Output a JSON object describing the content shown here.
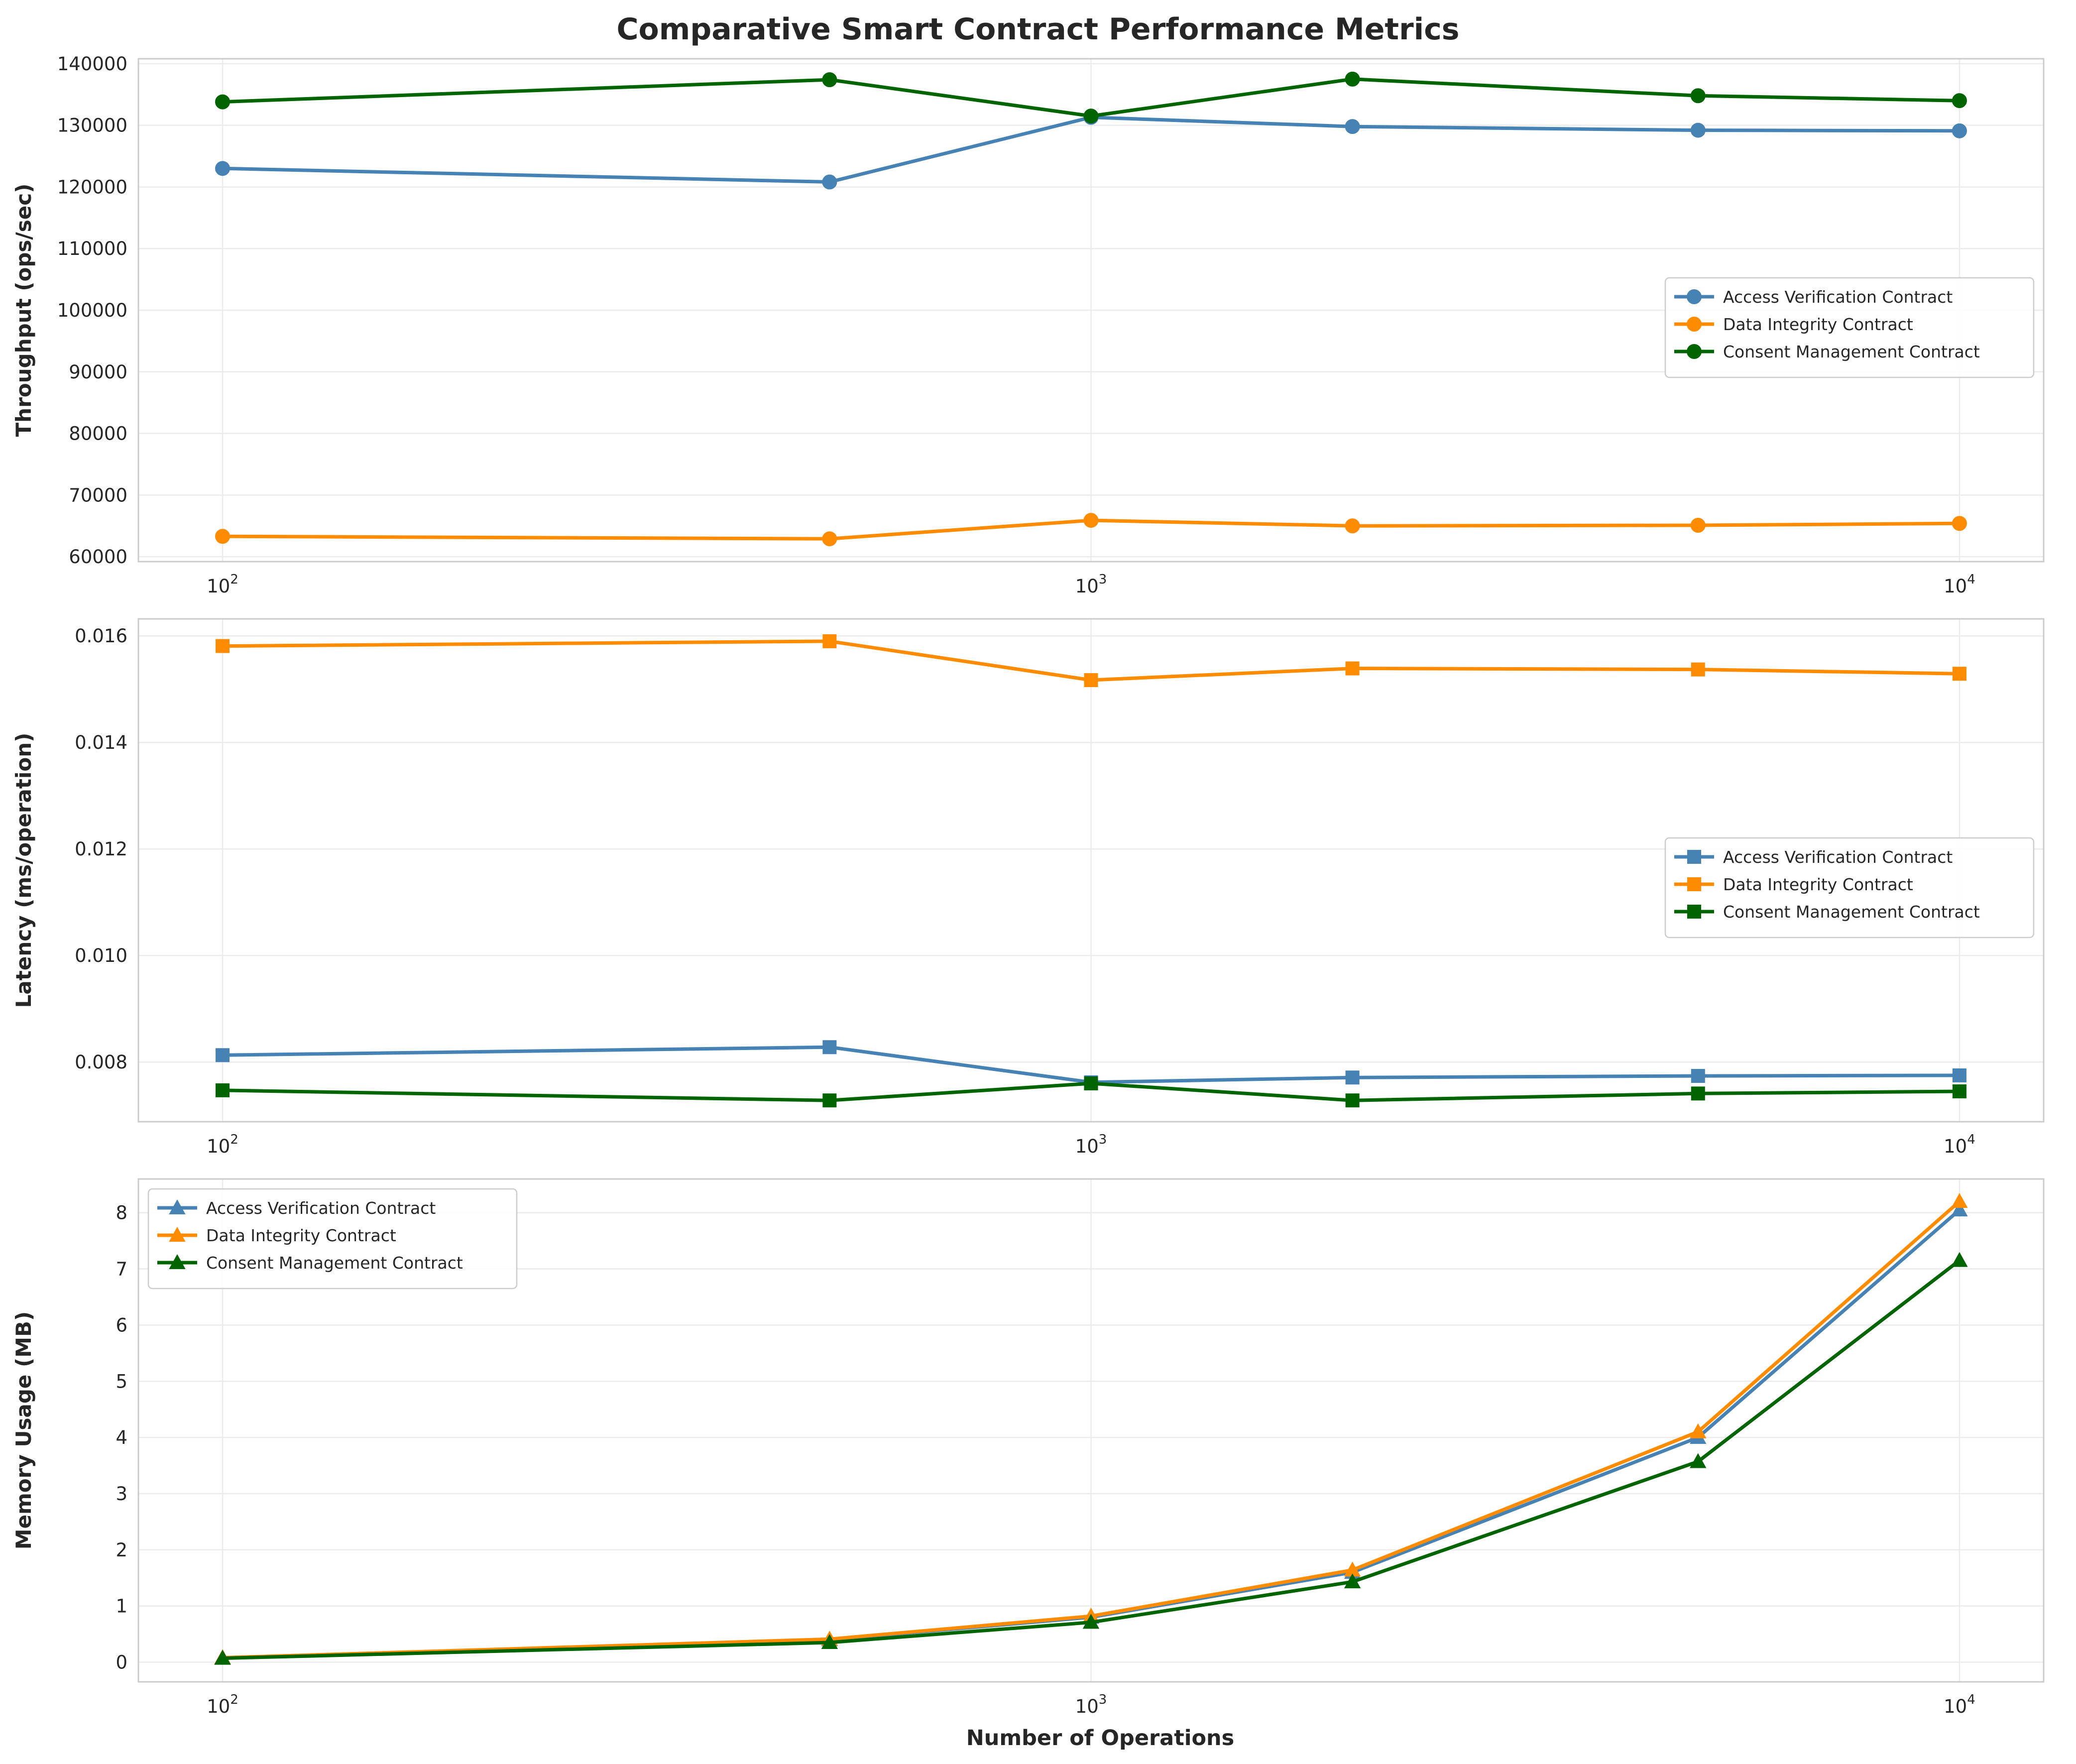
{
  "figure": {
    "title": "Comparative Smart Contract Performance Metrics",
    "xlabel": "Number of Operations"
  },
  "chart_data": [
    {
      "type": "line",
      "ylabel": "Throughput (ops/sec)",
      "xscale": "log",
      "xlim": [
        80,
        12500
      ],
      "ylim": [
        59200,
        140800
      ],
      "xticks": [
        100,
        1000,
        10000
      ],
      "xtick_labels": [
        [
          "10",
          "2"
        ],
        [
          "10",
          "3"
        ],
        [
          "10",
          "4"
        ]
      ],
      "yticks": [
        60000,
        70000,
        80000,
        90000,
        100000,
        110000,
        120000,
        130000,
        140000
      ],
      "ytick_labels": [
        "60000",
        "70000",
        "80000",
        "90000",
        "100000",
        "110000",
        "120000",
        "130000",
        "140000"
      ],
      "grid": true,
      "marker": "circle",
      "legend_position": "center-right",
      "x": [
        100,
        500,
        1000,
        2000,
        5000,
        10000
      ],
      "series": [
        {
          "name": "Access Verification Contract",
          "color": "#4682B4",
          "values": [
            123000,
            120800,
            131300,
            129800,
            129200,
            129100
          ]
        },
        {
          "name": "Data Integrity Contract",
          "color": "#FF8C00",
          "values": [
            63300,
            62900,
            65900,
            65000,
            65100,
            65400
          ]
        },
        {
          "name": "Consent Management Contract",
          "color": "#006400",
          "values": [
            133800,
            137400,
            131500,
            137500,
            134800,
            134000
          ]
        }
      ]
    },
    {
      "type": "line",
      "ylabel": "Latency (ms/operation)",
      "xscale": "log",
      "xlim": [
        80,
        12500
      ],
      "ylim": [
        0.00688,
        0.01632
      ],
      "xticks": [
        100,
        1000,
        10000
      ],
      "xtick_labels": [
        [
          "10",
          "2"
        ],
        [
          "10",
          "3"
        ],
        [
          "10",
          "4"
        ]
      ],
      "yticks": [
        0.008,
        0.01,
        0.012,
        0.014,
        0.016
      ],
      "ytick_labels": [
        "0.008",
        "0.010",
        "0.012",
        "0.014",
        "0.016"
      ],
      "grid": true,
      "marker": "square",
      "legend_position": "center-right",
      "x": [
        100,
        500,
        1000,
        2000,
        5000,
        10000
      ],
      "series": [
        {
          "name": "Access Verification Contract",
          "color": "#4682B4",
          "values": [
            0.00813,
            0.00828,
            0.00762,
            0.00771,
            0.00774,
            0.00775
          ]
        },
        {
          "name": "Data Integrity Contract",
          "color": "#FF8C00",
          "values": [
            0.01581,
            0.0159,
            0.01517,
            0.01539,
            0.01537,
            0.01529
          ]
        },
        {
          "name": "Consent Management Contract",
          "color": "#006400",
          "values": [
            0.00747,
            0.00728,
            0.0076,
            0.00728,
            0.00741,
            0.00745
          ]
        }
      ]
    },
    {
      "type": "line",
      "ylabel": "Memory Usage (MB)",
      "xscale": "log",
      "xlim": [
        80,
        12500
      ],
      "ylim": [
        -0.35,
        8.6
      ],
      "xticks": [
        100,
        1000,
        10000
      ],
      "xtick_labels": [
        [
          "10",
          "2"
        ],
        [
          "10",
          "3"
        ],
        [
          "10",
          "4"
        ]
      ],
      "yticks": [
        0,
        1,
        2,
        3,
        4,
        5,
        6,
        7,
        8
      ],
      "ytick_labels": [
        "0",
        "1",
        "2",
        "3",
        "4",
        "5",
        "6",
        "7",
        "8"
      ],
      "grid": true,
      "marker": "triangle",
      "legend_position": "upper-left",
      "x": [
        100,
        500,
        1000,
        2000,
        5000,
        10000
      ],
      "series": [
        {
          "name": "Access Verification Contract",
          "color": "#4682B4",
          "values": [
            0.08,
            0.4,
            0.8,
            1.6,
            4.0,
            8.05
          ]
        },
        {
          "name": "Data Integrity Contract",
          "color": "#FF8C00",
          "values": [
            0.08,
            0.41,
            0.82,
            1.64,
            4.1,
            8.2
          ]
        },
        {
          "name": "Consent Management Contract",
          "color": "#006400",
          "values": [
            0.07,
            0.35,
            0.71,
            1.43,
            3.57,
            7.15
          ]
        }
      ]
    }
  ]
}
